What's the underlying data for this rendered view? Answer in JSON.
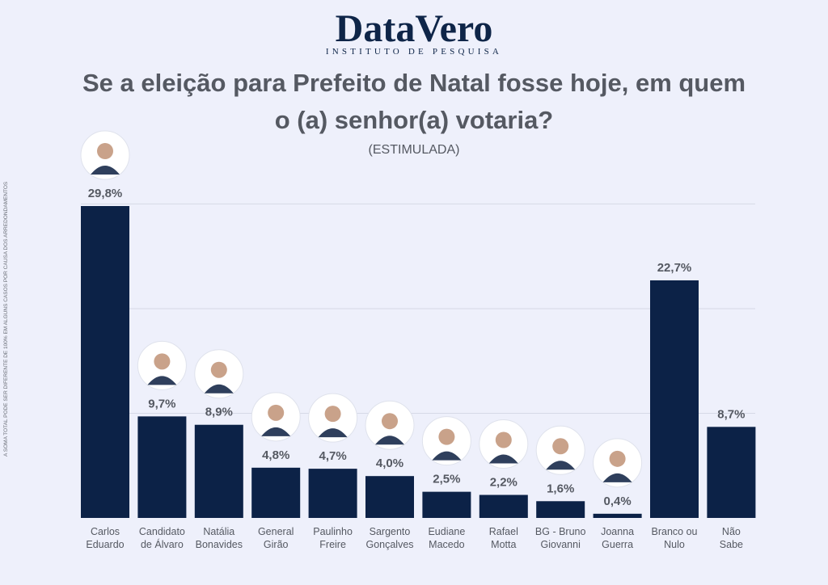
{
  "header": {
    "logo_main": "DataVero",
    "logo_sub": "INSTITUTO DE PESQUISA"
  },
  "side_note": "A SOMA TOTAL PODE SER DIFERENTE DE 100% EM ALGUNS CASOS POR CAUSA DOS ARREDONDAMENTOS",
  "chart_data": {
    "type": "bar",
    "title": "Se a eleição para Prefeito de Natal fosse hoje, em quem o (a) senhor(a) votaria?",
    "subtitle": "(ESTIMULADA)",
    "categories": [
      [
        "Carlos",
        "Eduardo"
      ],
      [
        "Candidato",
        "de Álvaro"
      ],
      [
        "Natália",
        "Bonavides"
      ],
      [
        "General",
        "Girão"
      ],
      [
        "Paulinho",
        "Freire"
      ],
      [
        "Sargento",
        "Gonçalves"
      ],
      [
        "Eudiane",
        "Macedo"
      ],
      [
        "Rafael",
        "Motta"
      ],
      [
        "BG - Bruno",
        "Giovanni"
      ],
      [
        "Joanna",
        "Guerra"
      ],
      [
        "Branco ou",
        "Nulo"
      ],
      [
        "Não",
        "Sabe"
      ]
    ],
    "values": [
      29.8,
      9.7,
      8.9,
      4.8,
      4.7,
      4.0,
      2.5,
      2.2,
      1.6,
      0.4,
      22.7,
      8.7
    ],
    "labels": [
      "29,8%",
      "9,7%",
      "8,9%",
      "4,8%",
      "4,7%",
      "4,0%",
      "2,5%",
      "2,2%",
      "1,6%",
      "0,4%",
      "22,7%",
      "8,7%"
    ],
    "photos": [
      true,
      true,
      true,
      true,
      true,
      true,
      true,
      true,
      true,
      true,
      false,
      false
    ],
    "ylim": [
      0,
      30
    ],
    "grid": true,
    "colors": {
      "bar": "#0c2247",
      "text": "#555962",
      "background": "#eef0fb"
    }
  }
}
